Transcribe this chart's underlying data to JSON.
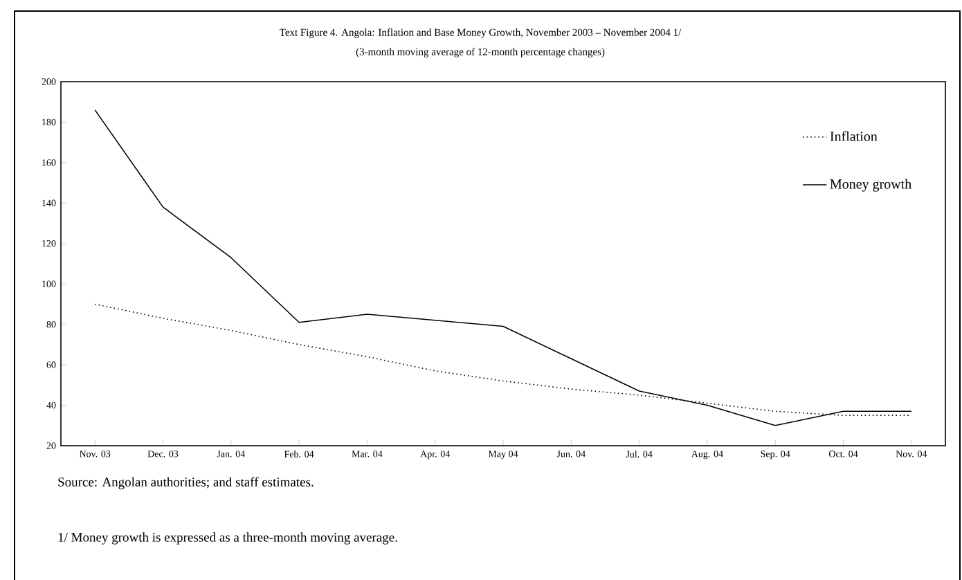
{
  "chart_data": {
    "type": "line",
    "title": "Text Figure 4. Angola: Inflation and Base Money Growth, November 2003 – November 2004 1/",
    "subtitle": "(3-month moving average of 12-month percentage changes)",
    "categories": [
      "Nov. 03",
      "Dec. 03",
      "Jan. 04",
      "Feb. 04",
      "Mar. 04",
      "Apr. 04",
      "May 04",
      "Jun. 04",
      "Jul. 04",
      "Aug. 04",
      "Sep. 04",
      "Oct. 04",
      "Nov. 04"
    ],
    "series": [
      {
        "name": "Inflation",
        "color": "#000000",
        "line_style": "dotted",
        "values": [
          90,
          83,
          77,
          70,
          64,
          57,
          52,
          48,
          45,
          41,
          37,
          35,
          35
        ]
      },
      {
        "name": "Money growth",
        "color": "#000000",
        "line_style": "solid",
        "values": [
          186,
          138,
          113,
          81,
          85,
          82,
          79,
          63,
          47,
          40,
          30,
          37,
          37
        ]
      }
    ],
    "ylim": [
      20,
      200
    ],
    "yticks": [
      20,
      40,
      60,
      80,
      100,
      120,
      140,
      160,
      180,
      200
    ],
    "legend": "top right",
    "grid": false,
    "marker": "none",
    "annotations": [
      "Source: Angolan authorities; and staff estimates.",
      "1/ Money growth is expressed as a three-month moving average."
    ]
  }
}
